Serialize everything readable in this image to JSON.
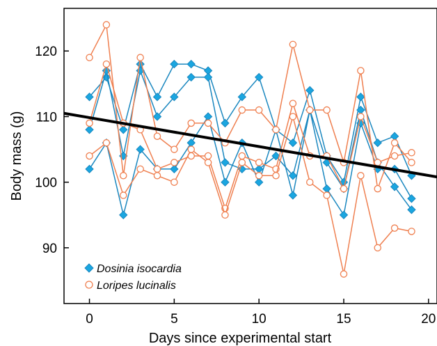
{
  "chart_data": {
    "type": "line",
    "title": "",
    "xlabel": "Days since experimental start",
    "ylabel": "Body mass (g)",
    "xlim": [
      -1.5,
      20.5
    ],
    "ylim": [
      81.5,
      126.5
    ],
    "xticks": [
      0,
      5,
      10,
      15,
      20
    ],
    "yticks": [
      90,
      100,
      110,
      120
    ],
    "grid": false,
    "legend_position": "bottom-left",
    "trend_line": {
      "x": [
        -1.5,
        20.5
      ],
      "y": [
        110.5,
        100.8
      ],
      "color": "#000000"
    },
    "series_styles": [
      {
        "name": "Dosinia isocardia",
        "color": "#1a87bf",
        "fill": "#1aa6e0",
        "marker": "diamond"
      },
      {
        "name": "Loripes lucinalis",
        "color": "#ef7f4f",
        "fill": "#ffffff",
        "marker": "circle"
      }
    ],
    "series": [
      {
        "name": "Dosinia isocardia",
        "group": 0,
        "x": [
          0,
          1,
          2,
          3,
          4,
          5,
          6,
          7,
          8,
          9,
          10,
          11,
          12,
          13,
          14,
          15,
          16,
          17,
          18,
          19
        ],
        "y": [
          113,
          116,
          108,
          118,
          113,
          118,
          118,
          117,
          109,
          113,
          116,
          108,
          106,
          114,
          104,
          100,
          113,
          106,
          107,
          101
        ]
      },
      {
        "name": "Dosinia isocardia",
        "group": 0,
        "x": [
          0,
          1,
          2,
          3,
          4,
          5,
          6,
          7,
          8,
          9,
          10,
          11,
          12,
          13,
          14,
          15,
          16,
          17,
          18,
          19
        ],
        "y": [
          108,
          117,
          104,
          117,
          110,
          113,
          116,
          116,
          103,
          102,
          102,
          104,
          101,
          111,
          103,
          99,
          111,
          103,
          99.3,
          95.8
        ]
      },
      {
        "name": "Dosinia isocardia",
        "group": 0,
        "x": [
          0,
          1,
          2,
          3,
          4,
          5,
          6,
          7,
          8,
          9,
          10,
          11,
          12,
          13,
          14,
          15,
          16,
          17,
          18,
          19
        ],
        "y": [
          102,
          106,
          95,
          105,
          102,
          102,
          106,
          110,
          100,
          106,
          100,
          108,
          98,
          111,
          99,
          95,
          109,
          102,
          102,
          97.5
        ]
      },
      {
        "name": "Loripes lucinalis",
        "group": 1,
        "x": [
          0,
          1,
          2,
          3,
          4,
          5,
          6,
          7,
          8,
          9,
          10,
          11,
          12,
          13,
          14,
          15,
          16,
          17,
          18,
          19
        ],
        "y": [
          119,
          124,
          101,
          119,
          107,
          105,
          109,
          109,
          106,
          111,
          111,
          108,
          121,
          111,
          111,
          103,
          117,
          99,
          106,
          103
        ]
      },
      {
        "name": "Loripes lucinalis",
        "group": 1,
        "x": [
          0,
          1,
          2,
          3,
          4,
          5,
          6,
          7,
          8,
          9,
          10,
          11,
          12,
          13,
          14,
          15,
          16,
          17,
          18,
          19
        ],
        "y": [
          109,
          118,
          109,
          108,
          102,
          103,
          104,
          104,
          96,
          104,
          103,
          102,
          112,
          104,
          104,
          99,
          110,
          103,
          104,
          104.5
        ]
      },
      {
        "name": "Loripes lucinalis",
        "group": 1,
        "x": [
          0,
          1,
          2,
          3,
          4,
          5,
          6,
          7,
          8,
          9,
          10,
          11,
          12,
          13,
          14,
          15,
          16,
          17,
          18,
          19
        ],
        "y": [
          104,
          106,
          98,
          102,
          101,
          100,
          105,
          103,
          95,
          103,
          101,
          101,
          110,
          100,
          98,
          86,
          101,
          90,
          93,
          92.5
        ]
      }
    ]
  }
}
